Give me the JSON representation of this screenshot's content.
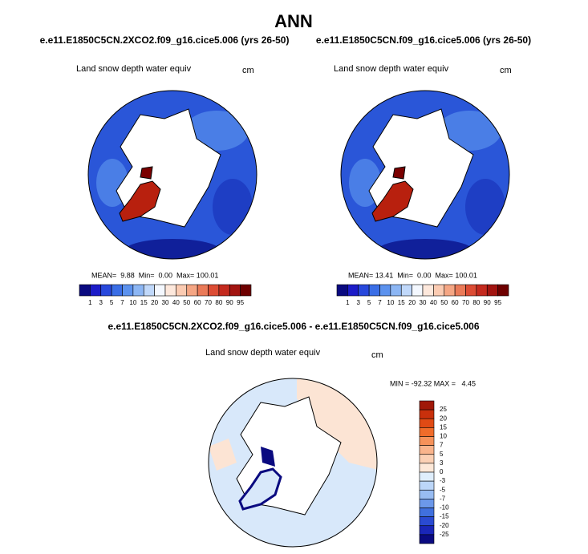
{
  "title": "ANN",
  "panels": [
    {
      "subtitle": "e.e11.E1850C5CN.2XCO2.f09_g16.cice5.006 (yrs 26-50)",
      "label": "Land snow depth water equiv",
      "units": "cm",
      "stats": "MEAN=  9.88  Min=  0.00  Max= 100.01"
    },
    {
      "subtitle": "e.e11.E1850C5CN.f09_g16.cice5.006 (yrs 26-50)",
      "label": "Land snow depth water equiv",
      "units": "cm",
      "stats": "MEAN= 13.41  Min=  0.00  Max= 100.01"
    }
  ],
  "difference": {
    "subtitle": "e.e11.E1850C5CN.2XCO2.f09_g16.cice5.006 - e.e11.E1850C5CN.f09_g16.cice5.006",
    "label": "Land snow depth water equiv",
    "units": "cm",
    "stats": "MIN = -92.32 MAX =   4.45"
  },
  "colorbar": {
    "levels": [
      1,
      3,
      5,
      7,
      10,
      15,
      20,
      30,
      40,
      50,
      60,
      70,
      80,
      90,
      95
    ],
    "colors": [
      "#0a0a80",
      "#1c1cc8",
      "#2848dc",
      "#3a6ee6",
      "#5c92ee",
      "#8cb6f4",
      "#c0d8fa",
      "#f4f8ff",
      "#fde8dc",
      "#fbcbb2",
      "#f5a684",
      "#ea7a58",
      "#dc4c34",
      "#c42a1e",
      "#a21410",
      "#6e0000"
    ]
  },
  "diff_colorbar": {
    "levels": [
      25,
      20,
      15,
      10,
      7,
      5,
      3,
      0,
      -3,
      -5,
      -7,
      -10,
      -15,
      -20,
      -25
    ],
    "colors": [
      "#a01808",
      "#c8300c",
      "#e04a14",
      "#f06c2a",
      "#f6925a",
      "#f9b48c",
      "#fbd0b4",
      "#fde8d8",
      "#dfeefc",
      "#bcd6f8",
      "#98bcf2",
      "#6c98ea",
      "#4070de",
      "#2a4ad2",
      "#1a26b8",
      "#0a0a80"
    ]
  }
}
